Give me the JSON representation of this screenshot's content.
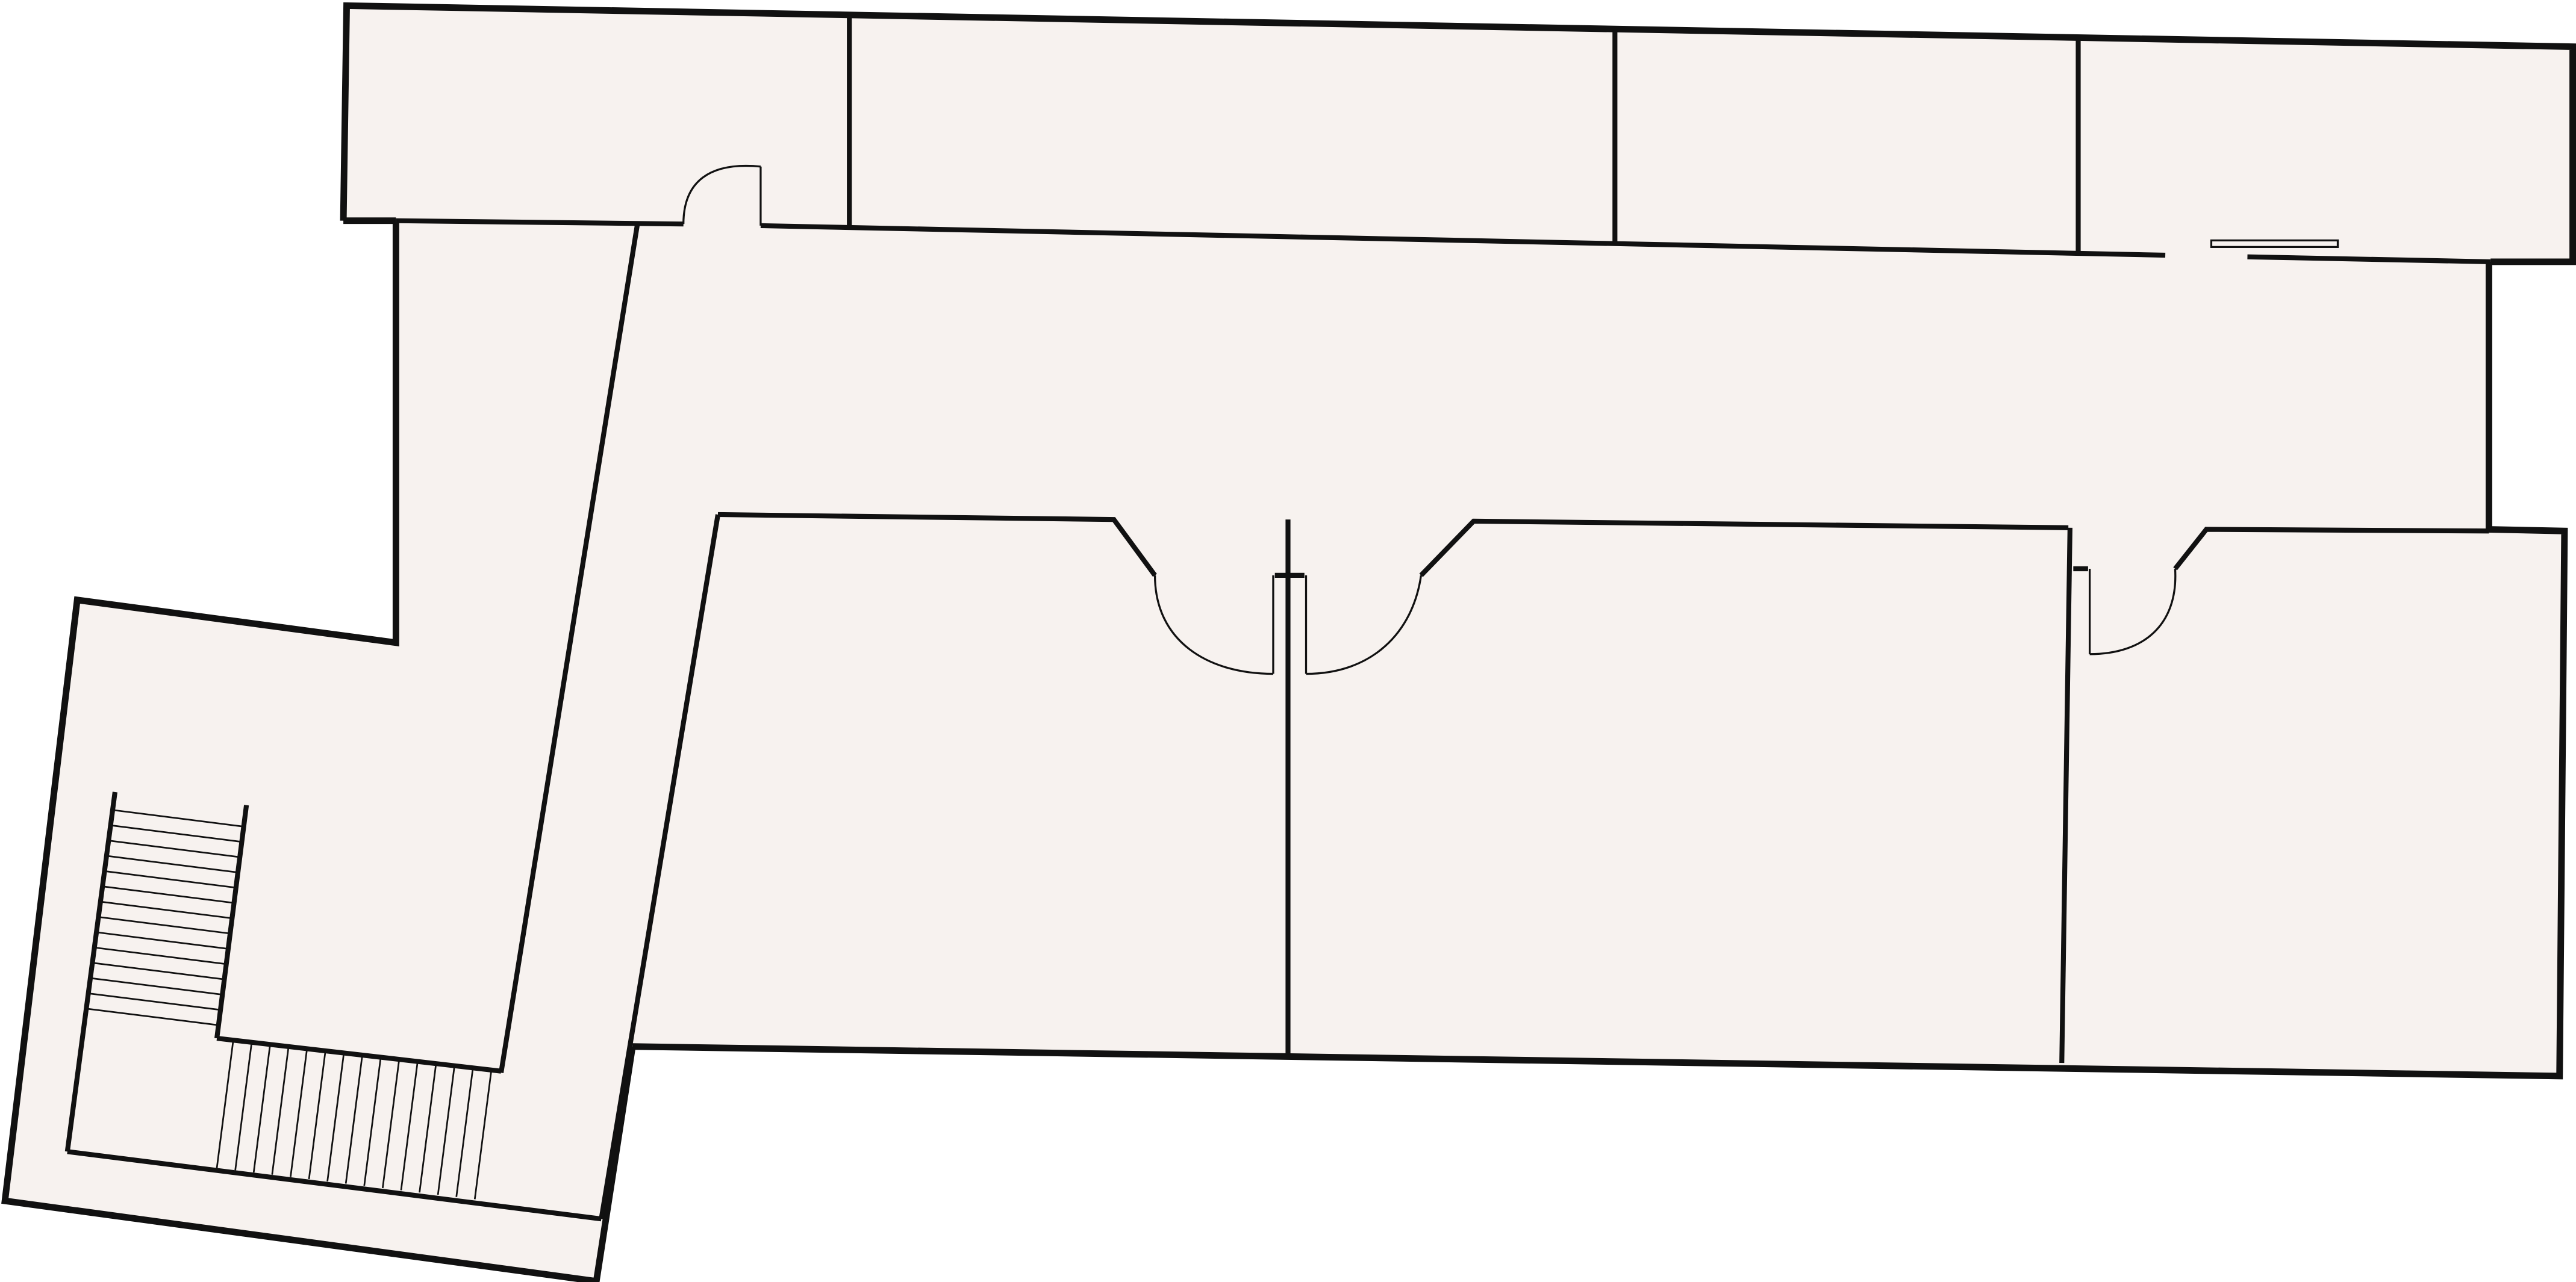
{
  "diagram": {
    "kind": "floor-plan",
    "colors": {
      "floor_fill": "#f7f2ef",
      "wall": "#111111",
      "background": "#ffffff"
    },
    "components": {
      "rooms": [
        "north-room-1",
        "north-room-2",
        "north-room-3",
        "north-room-4",
        "west-hallway",
        "central-corridor",
        "south-room-1",
        "south-room-2",
        "south-room-3",
        "stair-landing"
      ],
      "doors": [
        "door-north-1",
        "door-south-1",
        "door-south-2",
        "door-south-3"
      ],
      "stairs": [
        "staircase-upper-flight",
        "staircase-lower-flight"
      ],
      "fixtures": [
        "window-opening"
      ]
    },
    "labels": []
  }
}
